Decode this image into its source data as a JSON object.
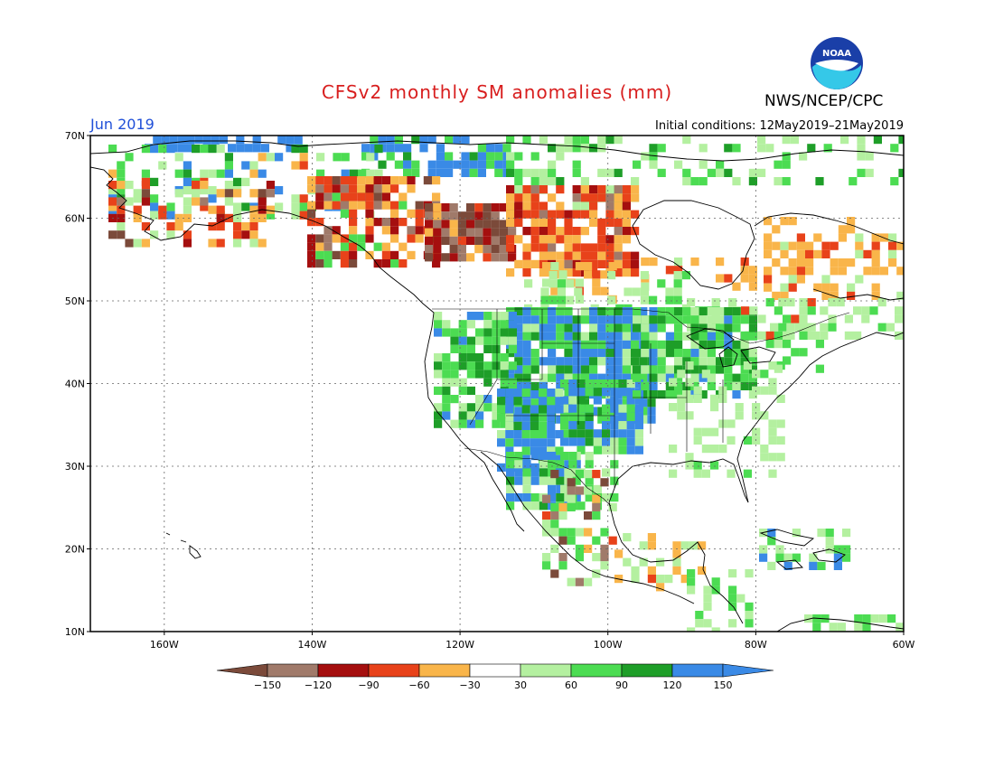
{
  "title": "CFSv2 monthly SM anomalies (mm)",
  "agency": "NWS/NCEP/CPC",
  "logo_text": "NOAA",
  "forecast_month": "Jun 2019",
  "initial_conditions": "Initial conditions: 12May2019–21May2019",
  "lat_labels": [
    "70N",
    "60N",
    "50N",
    "40N",
    "30N",
    "20N",
    "10N"
  ],
  "lon_labels": [
    "160W",
    "140W",
    "120W",
    "100W",
    "80W",
    "60W"
  ],
  "colorbar": {
    "labels": [
      "−150",
      "−120",
      "−90",
      "−60",
      "−30",
      "30",
      "60",
      "90",
      "120",
      "150"
    ],
    "colors": [
      "#7b4a3a",
      "#a07a6a",
      "#a50f0f",
      "#e8421a",
      "#f9b54a",
      "#ffffff",
      "#b4f0a0",
      "#4cdc52",
      "#1e9e28",
      "#3a8ae6",
      "#3a8ae6"
    ]
  }
}
